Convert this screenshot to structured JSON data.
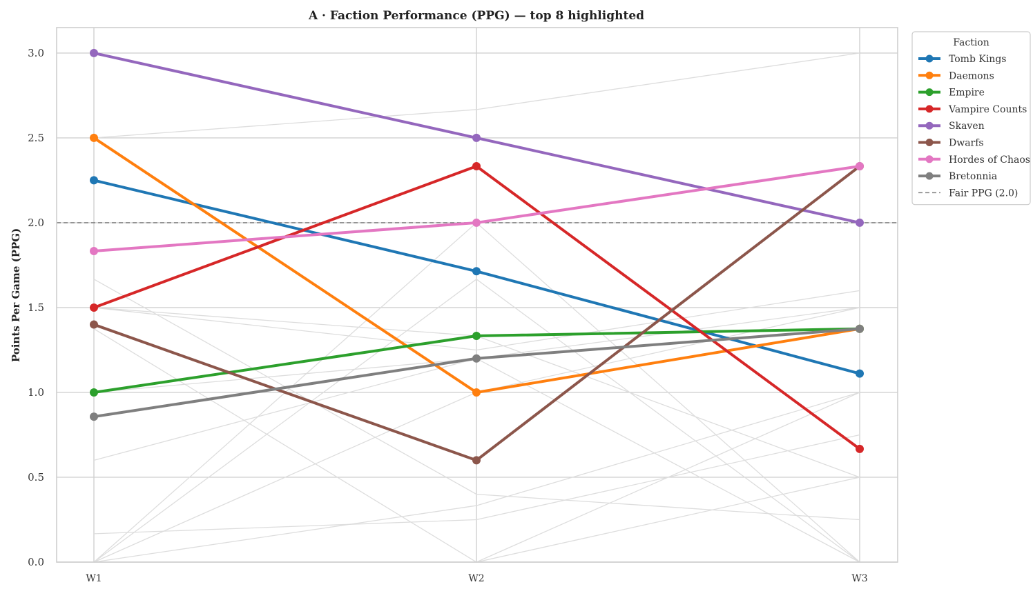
{
  "chart_data": {
    "type": "line",
    "title": "A  ·  Faction Performance (PPG) — top 8 highlighted",
    "xlabel": "",
    "ylabel": "Points Per Game (PPG)",
    "x": [
      "W1",
      "W2",
      "W3"
    ],
    "ylim": [
      0.0,
      3.15
    ],
    "yticks": [
      "0.0",
      "0.5",
      "1.0",
      "1.5",
      "2.0",
      "2.5",
      "3.0"
    ],
    "grid": true,
    "legend": {
      "title": "Faction",
      "placement": "outside-top-right"
    },
    "series": [
      {
        "name": "Tomb Kings",
        "color": "#1f77b4",
        "values": [
          2.25,
          1.714,
          1.111
        ]
      },
      {
        "name": "Daemons",
        "color": "#ff7f0e",
        "values": [
          2.5,
          1.0,
          1.375
        ]
      },
      {
        "name": "Empire",
        "color": "#2ca02c",
        "values": [
          1.0,
          1.333,
          1.375
        ]
      },
      {
        "name": "Vampire Counts",
        "color": "#d62728",
        "values": [
          1.5,
          2.333,
          0.667
        ]
      },
      {
        "name": "Skaven",
        "color": "#9467bd",
        "values": [
          3.0,
          2.5,
          2.0
        ]
      },
      {
        "name": "Dwarfs",
        "color": "#8c564b",
        "values": [
          1.4,
          0.6,
          2.333
        ]
      },
      {
        "name": "Hordes of Chaos",
        "color": "#e377c2",
        "values": [
          1.833,
          2.0,
          2.333
        ]
      },
      {
        "name": "Bretonnia",
        "color": "#7f7f7f",
        "values": [
          0.857,
          1.2,
          1.375
        ]
      }
    ],
    "background_series": [
      {
        "values": [
          2.5,
          2.667,
          3.0
        ]
      },
      {
        "values": [
          1.667,
          0.4,
          0.25
        ]
      },
      {
        "values": [
          1.5,
          1.25,
          1.6
        ]
      },
      {
        "values": [
          1.375,
          0.0,
          0.5
        ]
      },
      {
        "values": [
          0.6,
          1.2,
          1.5
        ]
      },
      {
        "values": [
          0.0,
          2.0,
          0.0
        ]
      },
      {
        "values": [
          0.0,
          0.333,
          1.0
        ]
      },
      {
        "values": [
          0.167,
          0.25,
          0.75
        ]
      },
      {
        "values": [
          0.0,
          1.667,
          0.0
        ]
      },
      {
        "values": [
          0.0,
          1.0,
          1.5
        ]
      },
      {
        "values": [
          1.5,
          1.333,
          0.5
        ]
      },
      {
        "values": [
          0.0,
          0.0,
          1.0
        ]
      },
      {
        "values": [
          1.0,
          1.2,
          0.0
        ]
      }
    ],
    "reference_line": {
      "name": "Fair PPG (2.0)",
      "value": 2.0,
      "color": "#777777"
    }
  }
}
